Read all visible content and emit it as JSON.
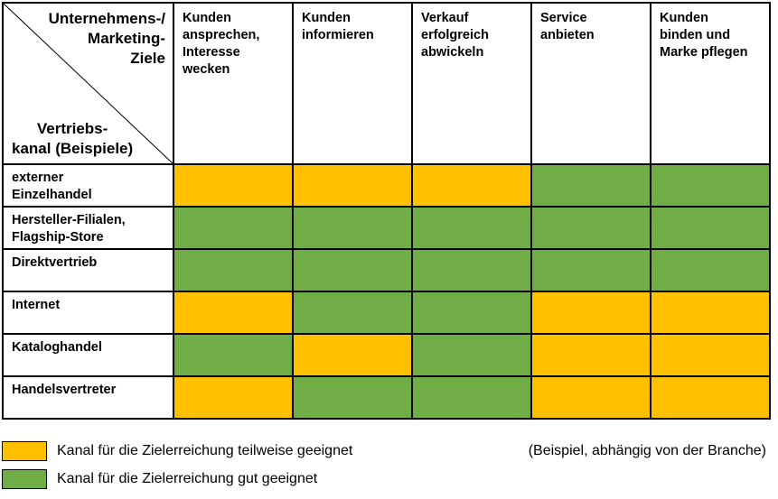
{
  "colors": {
    "partial": "#ffc000",
    "good": "#70ad47",
    "border": "#000000"
  },
  "corner": {
    "goals_label": "Unternehmens-/\nMarketing-\nZiele",
    "channel_label": "Vertriebs-\nkanal (Beispiele)"
  },
  "goals": [
    "Kunden\nansprechen,\nInteresse\nwecken",
    "Kunden\ninformieren",
    "Verkauf\nerfolgreich\nabwickeln",
    "Service\nanbieten",
    "Kunden\nbinden und\nMarke pflegen"
  ],
  "rows": [
    {
      "channel": "externer\nEinzelhandel",
      "ratings": [
        "partial",
        "partial",
        "partial",
        "good",
        "good"
      ]
    },
    {
      "channel": "Hersteller-Filialen,\nFlagship-Store",
      "ratings": [
        "good",
        "good",
        "good",
        "good",
        "good"
      ]
    },
    {
      "channel": "Direktvertrieb",
      "ratings": [
        "good",
        "good",
        "good",
        "good",
        "good"
      ]
    },
    {
      "channel": "Internet",
      "ratings": [
        "partial",
        "good",
        "good",
        "partial",
        "partial"
      ]
    },
    {
      "channel": "Kataloghandel",
      "ratings": [
        "good",
        "partial",
        "good",
        "partial",
        "partial"
      ]
    },
    {
      "channel": "Handelsvertreter",
      "ratings": [
        "partial",
        "good",
        "good",
        "partial",
        "partial"
      ]
    }
  ],
  "legend": {
    "partial_label": "Kanal für die Zielerreichung teilweise geeignet",
    "good_label": "Kanal für die Zielerreichung gut geeignet",
    "note": "(Beispiel, abhängig von der Branche)"
  }
}
